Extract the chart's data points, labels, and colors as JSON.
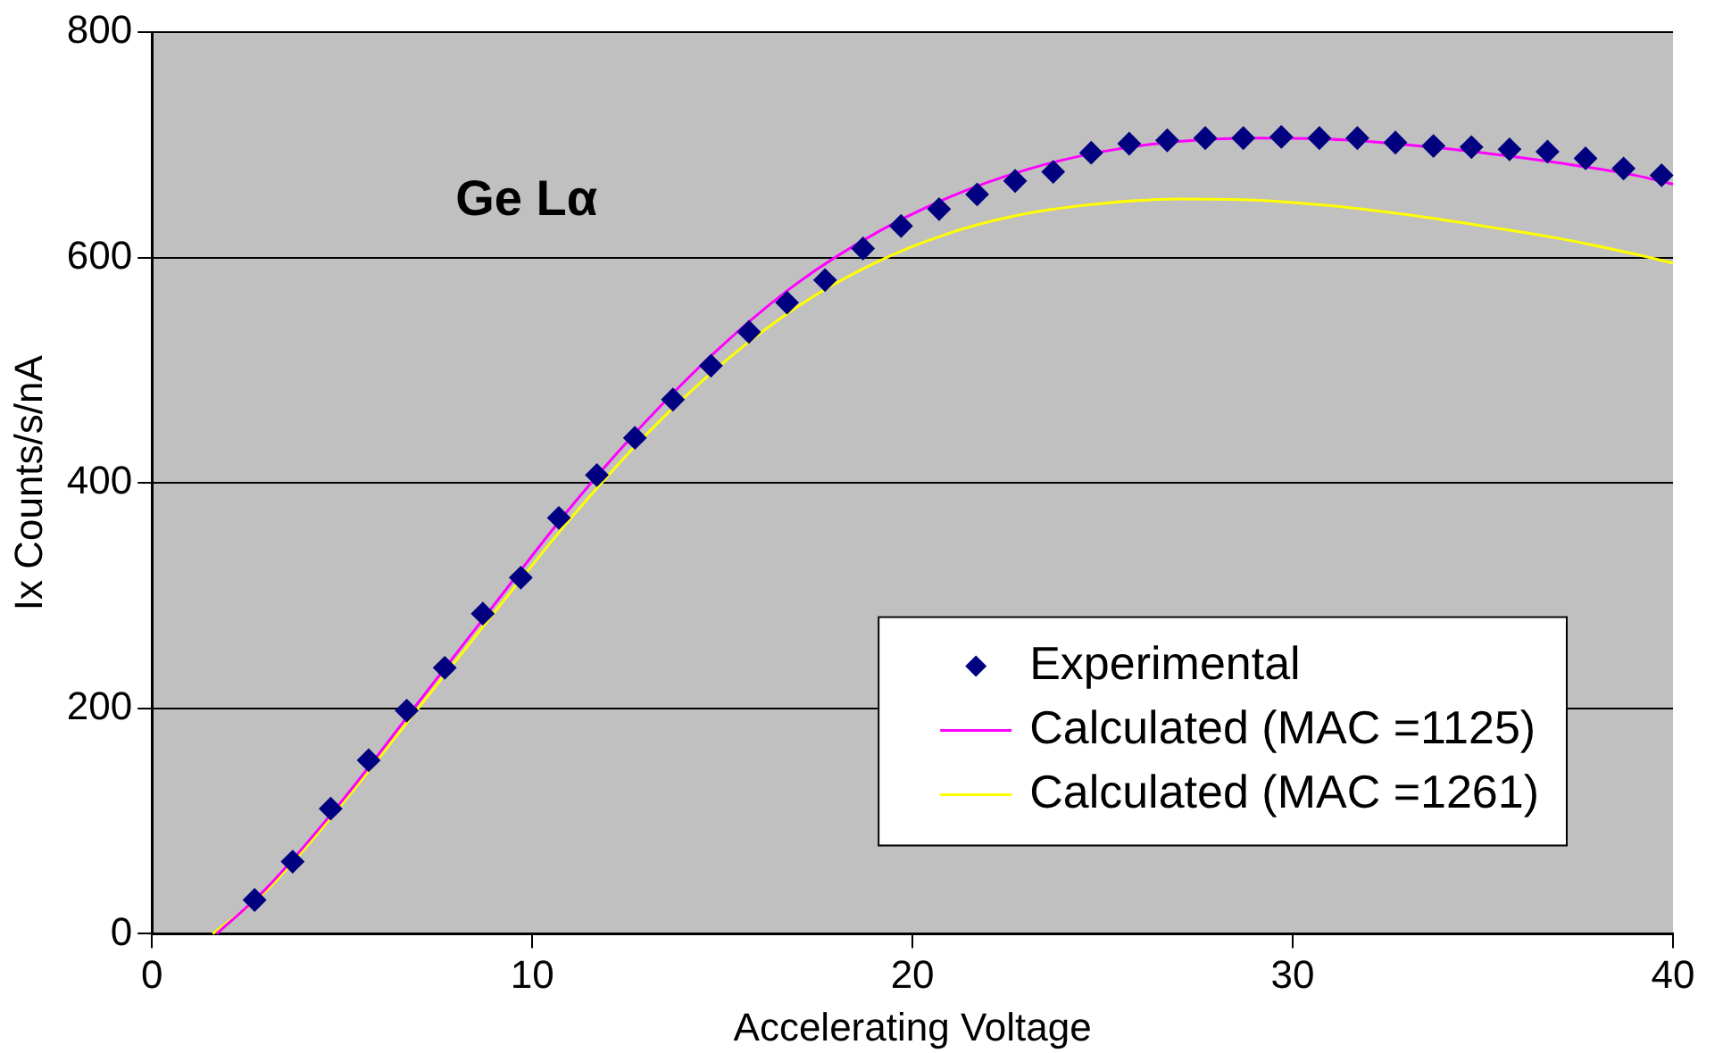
{
  "chart_data": {
    "type": "scatter",
    "xlabel": "Accelerating Voltage",
    "ylabel": "Ix Counts/s/nA",
    "annotations": [
      "Ge Lα"
    ],
    "xlim": [
      0,
      40
    ],
    "xticks": [
      0,
      10,
      20,
      30,
      40
    ],
    "ylim": [
      0,
      800
    ],
    "yticks": [
      0,
      200,
      400,
      600,
      800
    ],
    "grid": "y",
    "legend": "bottom right",
    "marker": "diamond",
    "series": [
      {
        "name": "Experimental",
        "type": "scatter",
        "color": "#000080",
        "x": [
          2.7,
          3.7,
          4.7,
          5.7,
          6.7,
          7.7,
          8.7,
          9.7,
          10.7,
          11.7,
          12.7,
          13.7,
          14.7,
          15.7,
          16.7,
          17.7,
          18.7,
          19.7,
          20.7,
          21.7,
          22.7,
          23.7,
          24.7,
          25.7,
          26.7,
          27.7,
          28.7,
          29.7,
          30.7,
          31.7,
          32.7,
          33.7,
          34.7,
          35.7,
          36.7,
          37.7,
          38.7,
          39.7
        ],
        "values": [
          30,
          64,
          111,
          154,
          198,
          236,
          284,
          316,
          369,
          407,
          440,
          474,
          504,
          534,
          560,
          580,
          608,
          628,
          643,
          656,
          668,
          676,
          693,
          701,
          704,
          706,
          706,
          707,
          706,
          706,
          702,
          699,
          698,
          696,
          694,
          688,
          679,
          673
        ]
      },
      {
        "name": "Calculated (MAC =1125)",
        "type": "line",
        "color": "#ff00ff",
        "marker": "none",
        "x": [
          1.7,
          3,
          5,
          7,
          9,
          11,
          13,
          15,
          17,
          19,
          21,
          23,
          25,
          27,
          29,
          31,
          33,
          35,
          37,
          39,
          40
        ],
        "values": [
          0,
          40,
          118,
          205,
          292,
          378,
          455,
          522,
          578,
          621,
          654,
          678,
          694,
          703,
          706,
          705,
          700,
          693,
          684,
          673,
          665
        ]
      },
      {
        "name": "Calculated (MAC =1261)",
        "type": "line",
        "color": "#ffff00",
        "marker": "none",
        "x": [
          1.6,
          3,
          5,
          7,
          9,
          11,
          13,
          15,
          17,
          19,
          21,
          23,
          25,
          27,
          29,
          31,
          33,
          35,
          37,
          39,
          40
        ],
        "values": [
          0,
          38,
          115,
          200,
          285,
          368,
          443,
          506,
          557,
          595,
          622,
          639,
          648,
          652,
          651,
          646,
          638,
          628,
          617,
          603,
          595
        ]
      }
    ]
  }
}
